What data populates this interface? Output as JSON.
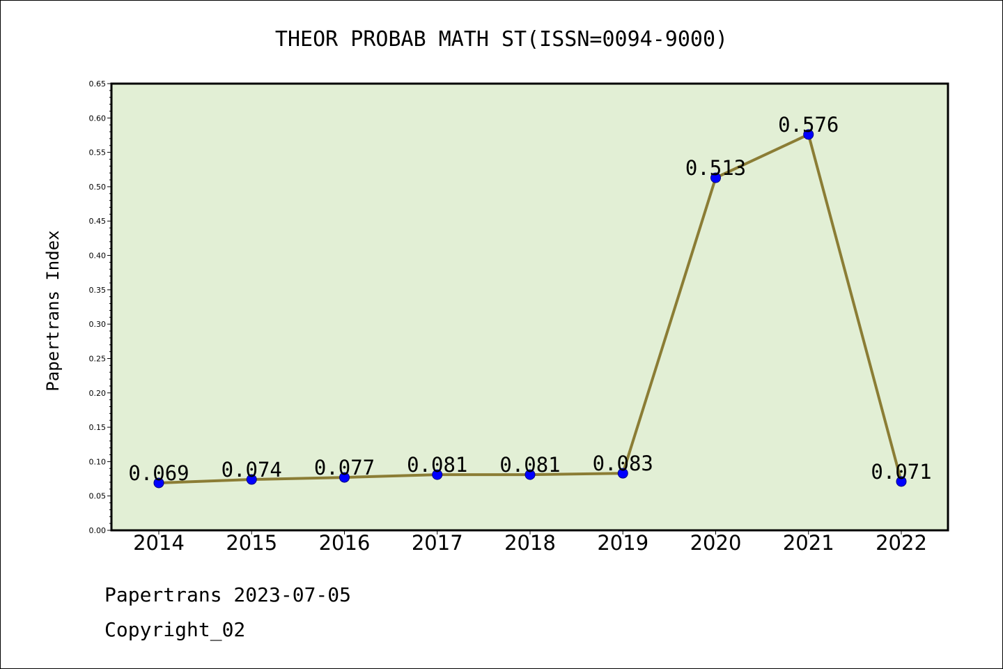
{
  "chart_data": {
    "type": "line",
    "title": "THEOR PROBAB MATH ST(ISSN=0094-9000)",
    "xlabel": "",
    "ylabel": "Papertrans Index",
    "categories": [
      "2014",
      "2015",
      "2016",
      "2017",
      "2018",
      "2019",
      "2020",
      "2021",
      "2022"
    ],
    "series": [
      {
        "values": [
          0.069,
          0.074,
          0.077,
          0.081,
          0.081,
          0.083,
          0.513,
          0.576,
          0.071
        ],
        "data_labels": [
          "0.069",
          "0.074",
          "0.077",
          "0.081",
          "0.081",
          "0.083",
          "0.513",
          "0.576",
          "0.071"
        ]
      }
    ],
    "ylim": [
      0,
      0.65
    ],
    "yticks": [
      "0.00",
      "0.05",
      "0.10",
      "0.15",
      "0.20",
      "0.25",
      "0.30",
      "0.35",
      "0.40",
      "0.45",
      "0.50",
      "0.55",
      "0.60",
      "0.65"
    ],
    "grid": false,
    "colors": {
      "plot_background": "#e2efd5",
      "line": "#8b7d35",
      "marker_fill": "#0000ff",
      "marker_edge": "#000080",
      "axis": "#000000"
    }
  },
  "footer": {
    "line1": "Papertrans 2023-07-05",
    "line2": "Copyright_02"
  }
}
